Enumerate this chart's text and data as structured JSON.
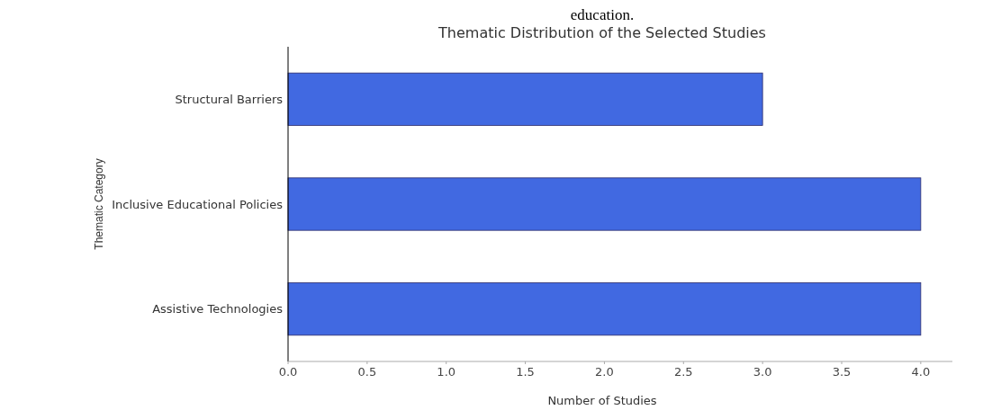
{
  "chart_data": {
    "type": "bar",
    "orientation": "horizontal",
    "title": "Thematic Distribution of the Selected Studies",
    "xlabel": "Number of Studies",
    "ylabel": "Thematic Category",
    "annotations": [
      "education."
    ],
    "categories": [
      "Structural Barriers",
      "Inclusive Educational Policies",
      "Assistive Technologies"
    ],
    "values": [
      3,
      4,
      4
    ],
    "color": "#4169e1",
    "xlim": [
      0,
      4.2
    ],
    "xticks": [
      {
        "value": 0,
        "label": "0.0"
      },
      {
        "value": 0.5,
        "label": "0.5"
      },
      {
        "value": 1,
        "label": "1.0"
      },
      {
        "value": 1.5,
        "label": "1.5"
      },
      {
        "value": 2,
        "label": "2.0"
      },
      {
        "value": 2.5,
        "label": "2.5"
      },
      {
        "value": 3,
        "label": "3.0"
      },
      {
        "value": 3.5,
        "label": "3.5"
      },
      {
        "value": 4,
        "label": "4.0"
      }
    ],
    "grid": false
  }
}
